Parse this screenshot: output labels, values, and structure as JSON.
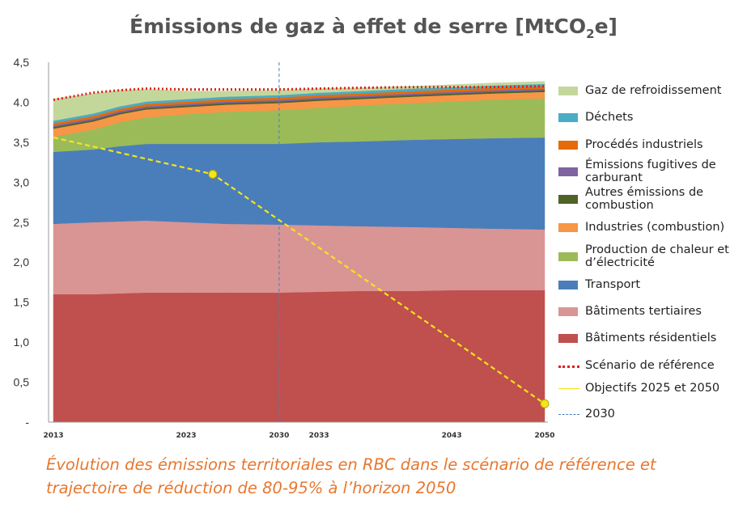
{
  "title": {
    "main": "Émissions de gaz à effet de serre [MtCO",
    "sub": "2",
    "end": "e]"
  },
  "caption": "Évolution des émissions territoriales en RBC dans le scénario de référence et trajectoire de réduction de 80-95% à l’horizon 2050",
  "chart_data": {
    "type": "area",
    "stacked": true,
    "x": [
      2013,
      2016,
      2018,
      2020,
      2023,
      2026,
      2030,
      2033,
      2036,
      2040,
      2043,
      2046,
      2050
    ],
    "x_tick_labels": [
      "2013",
      "2023",
      "2030",
      "2033",
      "2043",
      "2050"
    ],
    "y_tick_labels": [
      "-",
      "0,5",
      "1,0",
      "1,5",
      "2,0",
      "2,5",
      "3,0",
      "3,5",
      "4.0",
      "4,5"
    ],
    "ylim": [
      0,
      4.5
    ],
    "series": [
      {
        "name": "Bâtiments résidentiels",
        "color": "#c0504d",
        "values": [
          1.6,
          1.6,
          1.61,
          1.62,
          1.62,
          1.62,
          1.62,
          1.63,
          1.64,
          1.64,
          1.65,
          1.65,
          1.65
        ]
      },
      {
        "name": "Bâtiments tertiaires",
        "color": "#d99594",
        "values": [
          0.88,
          0.9,
          0.9,
          0.9,
          0.88,
          0.86,
          0.85,
          0.83,
          0.81,
          0.8,
          0.78,
          0.77,
          0.76
        ]
      },
      {
        "name": "Transport",
        "color": "#4a7ebb",
        "values": [
          0.9,
          0.91,
          0.94,
          0.96,
          0.98,
          1.0,
          1.01,
          1.04,
          1.06,
          1.09,
          1.11,
          1.13,
          1.15
        ]
      },
      {
        "name": "Production de chaleur et d’électricité",
        "color": "#9bbb59",
        "values": [
          0.19,
          0.25,
          0.3,
          0.33,
          0.37,
          0.4,
          0.42,
          0.43,
          0.45,
          0.46,
          0.47,
          0.48,
          0.49
        ]
      },
      {
        "name": "Industries (combustion)",
        "color": "#f79646",
        "values": [
          0.1,
          0.1,
          0.1,
          0.1,
          0.09,
          0.09,
          0.09,
          0.09,
          0.08,
          0.08,
          0.08,
          0.08,
          0.08
        ]
      },
      {
        "name": "Autres émissions de combustion",
        "color": "#4f6228",
        "values": [
          0.02,
          0.02,
          0.02,
          0.02,
          0.02,
          0.02,
          0.02,
          0.02,
          0.02,
          0.02,
          0.02,
          0.02,
          0.02
        ]
      },
      {
        "name": "Émissions fugitives de carburant",
        "color": "#8064a2",
        "values": [
          0.02,
          0.02,
          0.02,
          0.02,
          0.02,
          0.02,
          0.02,
          0.02,
          0.02,
          0.02,
          0.02,
          0.02,
          0.02
        ]
      },
      {
        "name": "Procédés industriels",
        "color": "#e46c0a",
        "values": [
          0.03,
          0.03,
          0.03,
          0.03,
          0.03,
          0.03,
          0.03,
          0.03,
          0.03,
          0.03,
          0.03,
          0.03,
          0.03
        ]
      },
      {
        "name": "Déchets",
        "color": "#4bacc6",
        "values": [
          0.03,
          0.03,
          0.03,
          0.03,
          0.03,
          0.03,
          0.03,
          0.03,
          0.03,
          0.03,
          0.03,
          0.03,
          0.03
        ]
      },
      {
        "name": "Gaz de refroidissement",
        "color": "#c4d79b",
        "values": [
          0.27,
          0.25,
          0.2,
          0.15,
          0.1,
          0.07,
          0.06,
          0.05,
          0.04,
          0.03,
          0.03,
          0.03,
          0.03
        ]
      }
    ],
    "reference_scenario": {
      "name": "Scénario de référence",
      "color": "#e0201b",
      "values": [
        4.03,
        4.12,
        4.15,
        4.17,
        4.16,
        4.16,
        4.16,
        4.17,
        4.18,
        4.19,
        4.19,
        4.19,
        4.2
      ]
    },
    "targets": {
      "name": "Objectifs 2025 et 2050",
      "color": "#f5e51b",
      "points": [
        {
          "x": 2013,
          "y": 3.56
        },
        {
          "x": 2025,
          "y": 3.1
        },
        {
          "x": 2050,
          "y": 0.23
        }
      ]
    },
    "vertical_marker": {
      "name": "2030",
      "x": 2030,
      "color": "#4a7ebb"
    }
  },
  "legend": [
    {
      "label": "Gaz de refroidissement",
      "color": "#c4d79b",
      "kind": "box"
    },
    {
      "label": "Déchets",
      "color": "#4bacc6",
      "kind": "box"
    },
    {
      "label": "Procédés industriels",
      "color": "#e46c0a",
      "kind": "box"
    },
    {
      "label": "Émissions fugitives de carburant",
      "color": "#8064a2",
      "kind": "box"
    },
    {
      "label": "Autres émissions de combustion",
      "color": "#4f6228",
      "kind": "box"
    },
    {
      "label": "Industries (combustion)",
      "color": "#f79646",
      "kind": "box"
    },
    {
      "label": "Production de chaleur et d’électricité",
      "color": "#9bbb59",
      "kind": "box"
    },
    {
      "label": "Transport",
      "color": "#4a7ebb",
      "kind": "box"
    },
    {
      "label": "Bâtiments tertiaires",
      "color": "#d99594",
      "kind": "box"
    },
    {
      "label": "Bâtiments résidentiels",
      "color": "#c0504d",
      "kind": "box"
    },
    {
      "label": "Scénario de référence",
      "color": "#e0201b",
      "kind": "dotted"
    },
    {
      "label": "Objectifs 2025 et 2050",
      "color": "#f5e51b",
      "kind": "thin"
    },
    {
      "label": "2030",
      "color": "#4a7ebb",
      "kind": "dashed"
    }
  ]
}
